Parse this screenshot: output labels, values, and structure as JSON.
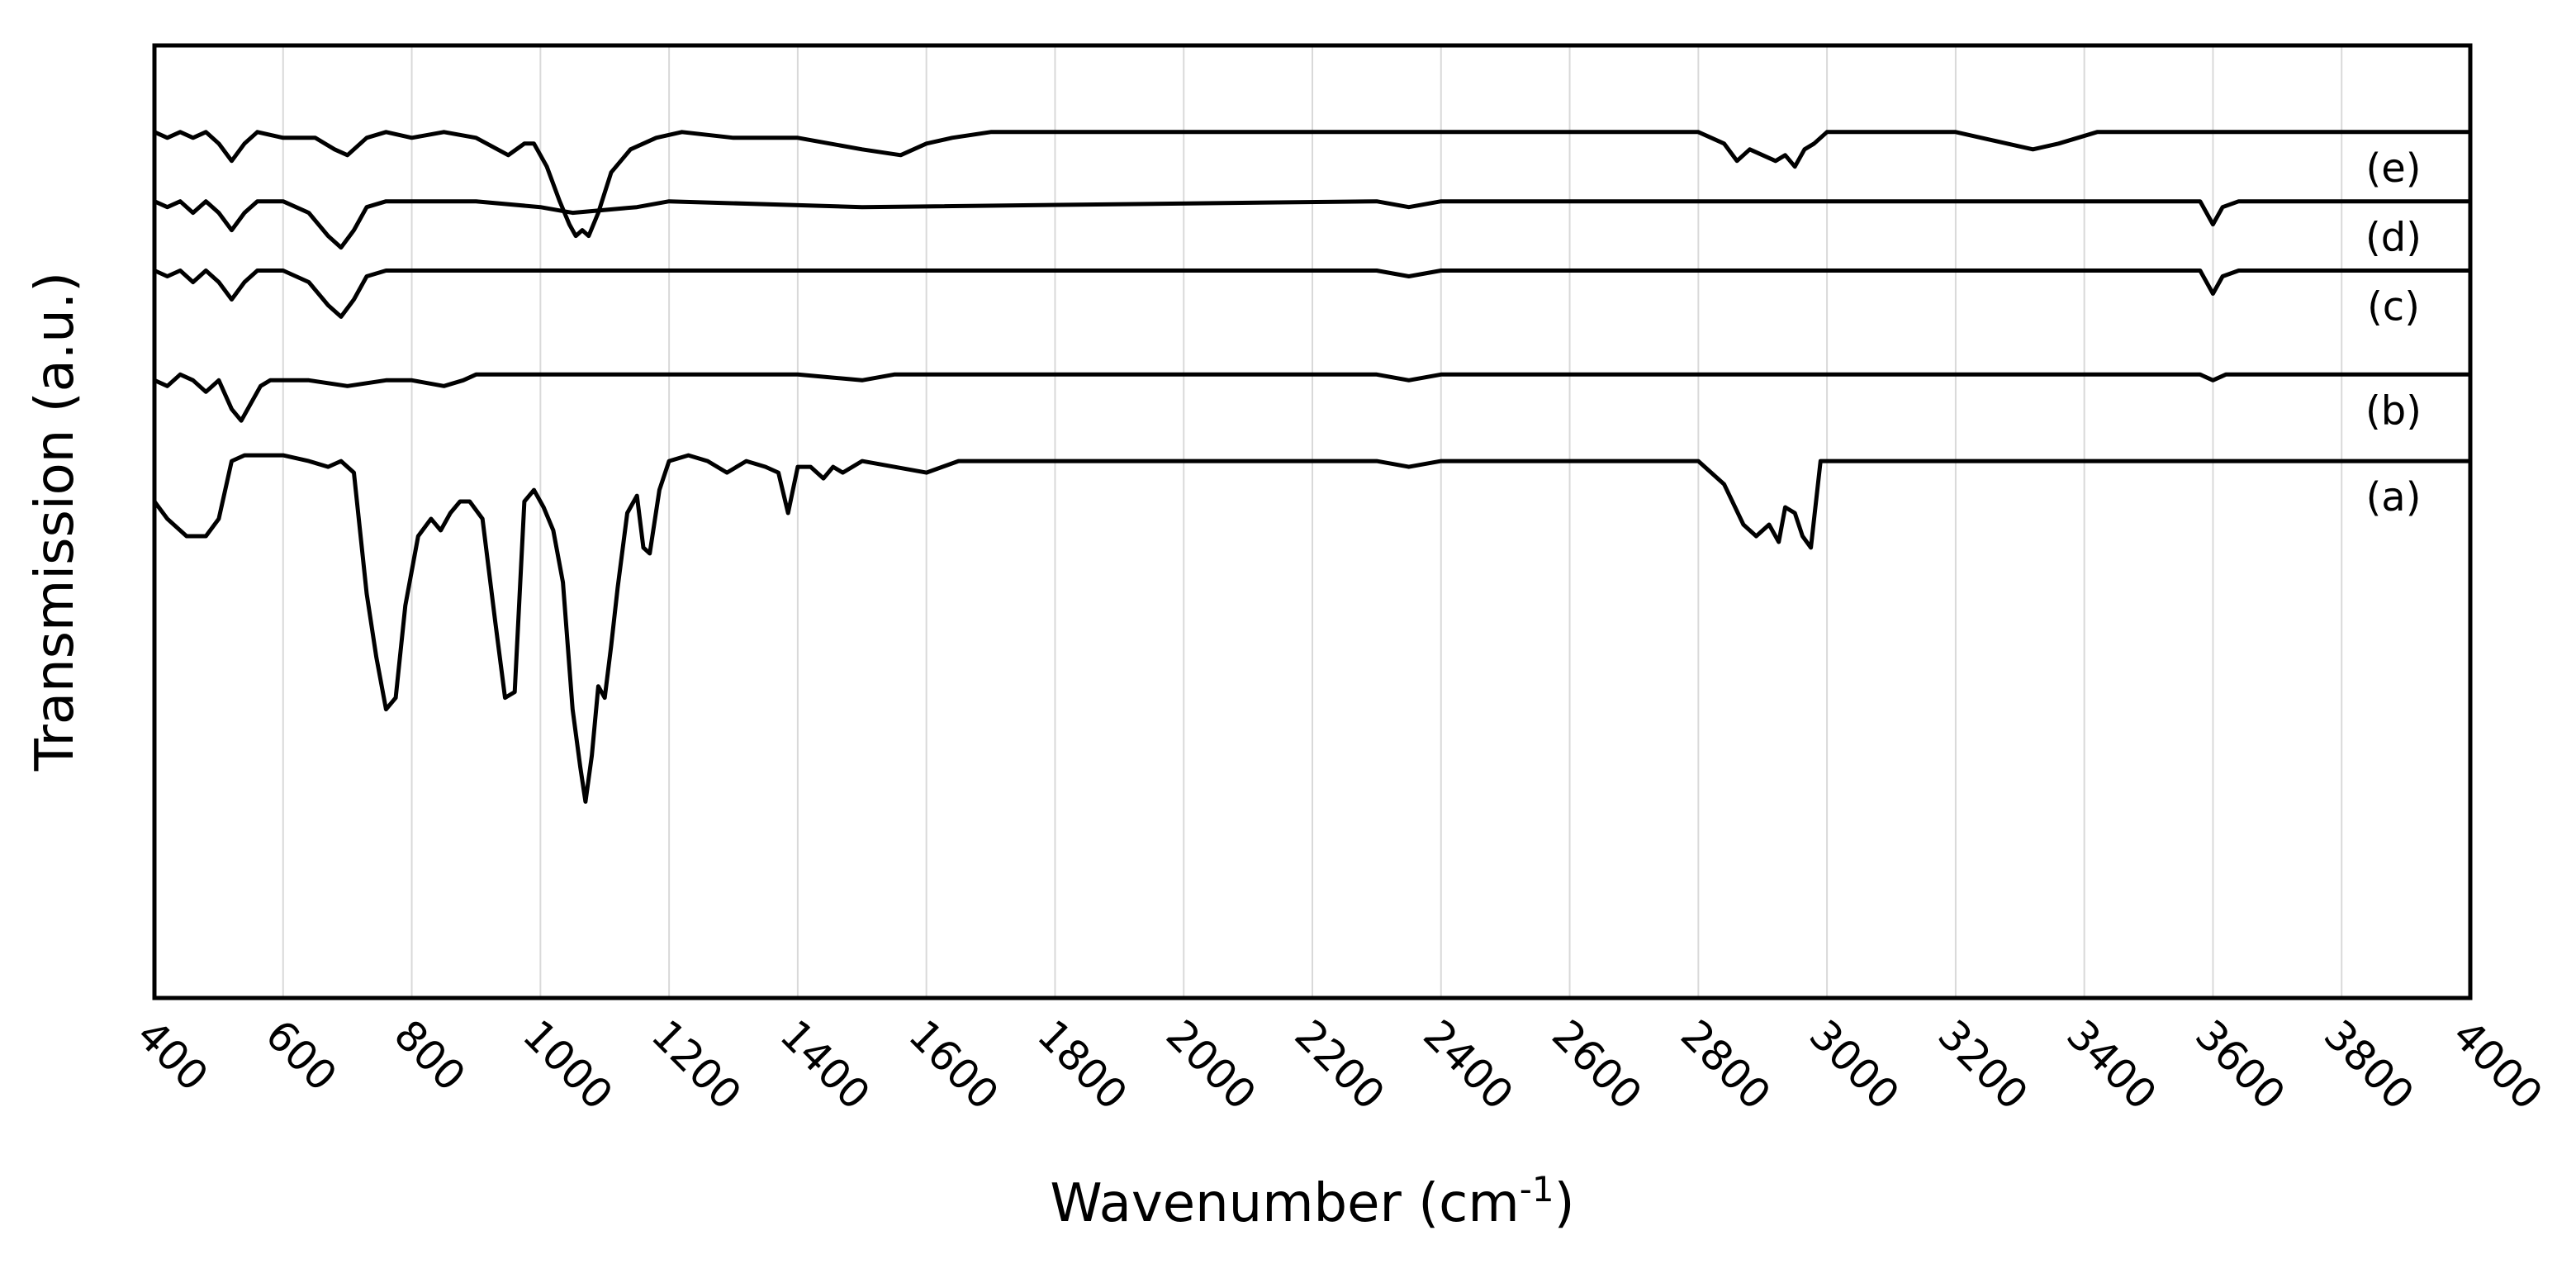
{
  "chart_data": {
    "type": "line",
    "title": "",
    "xlabel": "Wavenumber (cm",
    "xlabel_sup": "-1",
    "xlabel_close": ")",
    "ylabel": "Transmission (a.u.)",
    "xlim": [
      400,
      4000
    ],
    "ylim": [
      0,
      100
    ],
    "x_ticks": [
      400,
      600,
      800,
      1000,
      1200,
      1400,
      1600,
      1800,
      2000,
      2200,
      2400,
      2600,
      2800,
      3000,
      3200,
      3400,
      3600,
      3800,
      4000
    ],
    "x_tick_labels": [
      "400",
      "600",
      "800",
      "1000",
      "1200",
      "1400",
      "1600",
      "1800",
      "2000",
      "2200",
      "2400",
      "2600",
      "2800",
      "3000",
      "3200",
      "3400",
      "3600",
      "3800",
      "4000"
    ],
    "grid": true,
    "series": [
      {
        "name": "(a)",
        "x": [
          400,
          420,
          450,
          480,
          500,
          520,
          540,
          560,
          600,
          640,
          670,
          690,
          710,
          730,
          745,
          760,
          775,
          790,
          810,
          830,
          845,
          860,
          875,
          890,
          910,
          930,
          945,
          960,
          975,
          990,
          1005,
          1020,
          1035,
          1050,
          1062,
          1070,
          1080,
          1090,
          1100,
          1110,
          1120,
          1135,
          1150,
          1160,
          1170,
          1185,
          1200,
          1230,
          1260,
          1290,
          1320,
          1350,
          1370,
          1385,
          1400,
          1420,
          1440,
          1455,
          1470,
          1500,
          1550,
          1600,
          1650,
          1700,
          2000,
          2300,
          2350,
          2400,
          2600,
          2800,
          2840,
          2870,
          2890,
          2910,
          2925,
          2935,
          2950,
          2962,
          2975,
          2990,
          3020,
          3400,
          3600,
          4000
        ],
        "y": [
          86,
          83,
          80,
          80,
          83,
          93,
          94,
          94,
          94,
          93,
          92,
          93,
          91,
          70,
          59,
          50,
          52,
          68,
          80,
          83,
          81,
          84,
          86,
          86,
          83,
          65,
          52,
          53,
          86,
          88,
          85,
          81,
          72,
          50,
          40,
          34,
          42,
          54,
          52,
          61,
          71,
          84,
          87,
          78,
          77,
          88,
          93,
          94,
          93,
          91,
          93,
          92,
          91,
          84,
          92,
          92,
          90,
          92,
          91,
          93,
          92,
          91,
          93,
          93,
          93,
          93,
          92,
          93,
          93,
          93,
          89,
          82,
          80,
          82,
          79,
          85,
          84,
          80,
          78,
          93,
          93,
          93,
          93,
          93
        ]
      },
      {
        "name": "(b)",
        "x": [
          400,
          420,
          440,
          460,
          480,
          500,
          520,
          535,
          550,
          565,
          580,
          600,
          640,
          700,
          760,
          800,
          850,
          880,
          900,
          1000,
          1200,
          1400,
          1500,
          1550,
          1600,
          2300,
          2350,
          2400,
          3580,
          3600,
          3620,
          4000
        ],
        "y": [
          107,
          106,
          108,
          107,
          105,
          107,
          102,
          100,
          103,
          106,
          107,
          107,
          107,
          106,
          107,
          107,
          106,
          107,
          108,
          108,
          108,
          108,
          107,
          108,
          108,
          108,
          107,
          108,
          108,
          107,
          108,
          108
        ]
      },
      {
        "name": "(c)",
        "x": [
          400,
          420,
          440,
          460,
          480,
          500,
          520,
          540,
          560,
          600,
          640,
          670,
          690,
          710,
          730,
          760,
          800,
          850,
          900,
          1000,
          1200,
          1500,
          2300,
          2350,
          2400,
          3580,
          3600,
          3615,
          3640,
          4000
        ],
        "y": [
          126,
          125,
          126,
          124,
          126,
          124,
          121,
          124,
          126,
          126,
          124,
          120,
          118,
          121,
          125,
          126,
          126,
          126,
          126,
          126,
          126,
          126,
          126,
          125,
          126,
          126,
          122,
          125,
          126,
          126
        ]
      },
      {
        "name": "(d)",
        "x": [
          400,
          420,
          440,
          460,
          480,
          500,
          520,
          540,
          560,
          600,
          640,
          670,
          690,
          710,
          730,
          760,
          800,
          900,
          1000,
          1050,
          1150,
          1200,
          1500,
          2300,
          2350,
          2400,
          3580,
          3600,
          3615,
          3640,
          4000
        ],
        "y": [
          138,
          137,
          138,
          136,
          138,
          136,
          133,
          136,
          138,
          138,
          136,
          132,
          130,
          133,
          137,
          138,
          138,
          138,
          137,
          136,
          137,
          138,
          137,
          138,
          137,
          138,
          138,
          134,
          137,
          138,
          138
        ]
      },
      {
        "name": "(e)",
        "x": [
          400,
          420,
          440,
          460,
          480,
          500,
          520,
          540,
          560,
          600,
          650,
          680,
          700,
          730,
          760,
          800,
          850,
          900,
          950,
          975,
          990,
          1010,
          1030,
          1045,
          1055,
          1065,
          1075,
          1090,
          1110,
          1140,
          1180,
          1220,
          1300,
          1400,
          1500,
          1560,
          1580,
          1600,
          1640,
          1700,
          2000,
          2400,
          2800,
          2840,
          2860,
          2880,
          2900,
          2920,
          2935,
          2950,
          2965,
          2980,
          3000,
          3050,
          3200,
          3280,
          3320,
          3360,
          3420,
          3600,
          4000
        ],
        "y": [
          150,
          149,
          150,
          149,
          150,
          148,
          145,
          148,
          150,
          149,
          149,
          147,
          146,
          149,
          150,
          149,
          150,
          149,
          146,
          148,
          148,
          144,
          138,
          134,
          132,
          133,
          132,
          136,
          143,
          147,
          149,
          150,
          149,
          149,
          147,
          146,
          147,
          148,
          149,
          150,
          150,
          150,
          150,
          148,
          145,
          147,
          146,
          145,
          146,
          144,
          147,
          148,
          150,
          150,
          150,
          148,
          147,
          148,
          150,
          150,
          150
        ]
      }
    ]
  }
}
